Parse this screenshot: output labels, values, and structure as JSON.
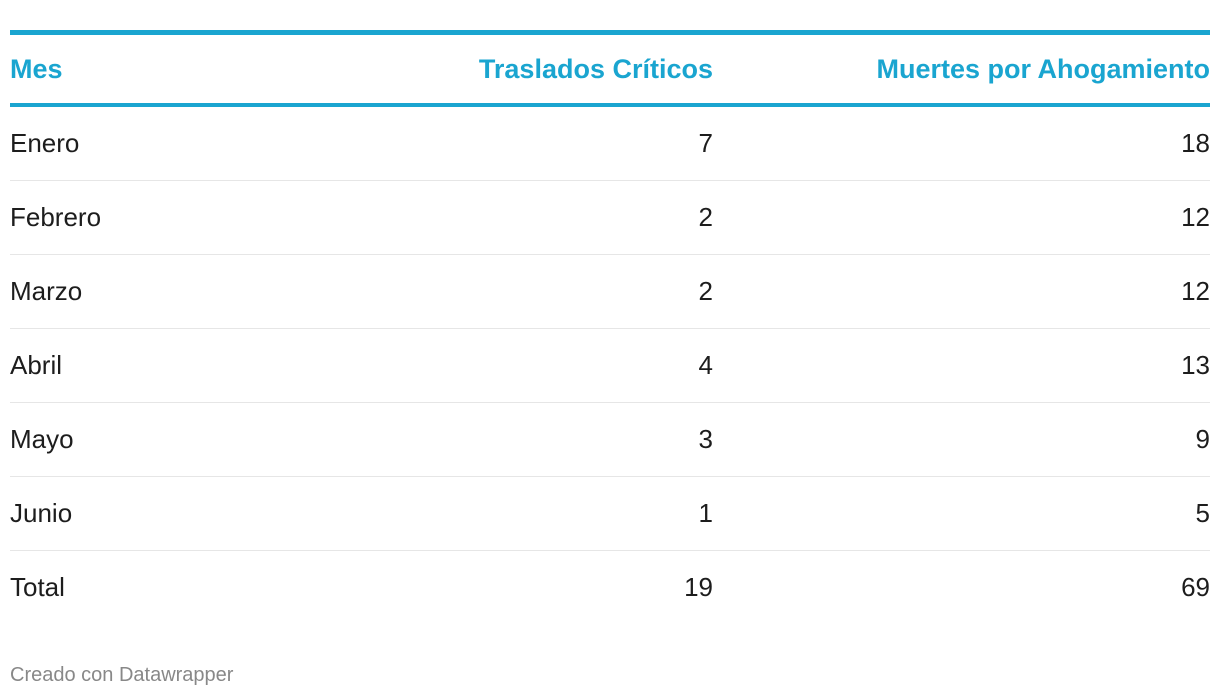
{
  "chart_data": {
    "type": "table",
    "columns": [
      "Mes",
      "Traslados Críticos",
      "Muertes por Ahogamiento"
    ],
    "rows": [
      [
        "Enero",
        "7",
        "18"
      ],
      [
        "Febrero",
        "2",
        "12"
      ],
      [
        "Marzo",
        "2",
        "12"
      ],
      [
        "Abril",
        "4",
        "13"
      ],
      [
        "Mayo",
        "3",
        "9"
      ],
      [
        "Junio",
        "1",
        "5"
      ],
      [
        "Total",
        "19",
        "69"
      ]
    ],
    "accent_color": "#1aa5d0"
  },
  "footer": "Creado con Datawrapper"
}
